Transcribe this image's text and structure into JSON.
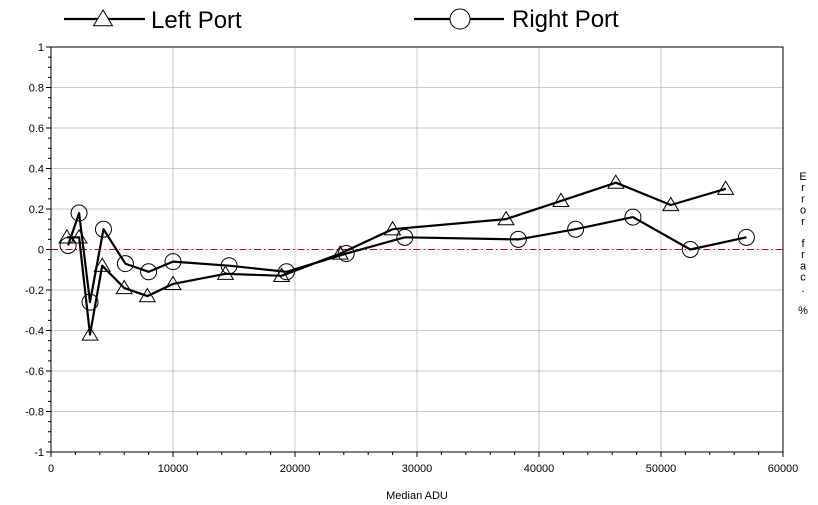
{
  "chart_data": {
    "type": "line",
    "xlabel": "Median ADU",
    "ylabel": "Error frac. %",
    "xlim": [
      0,
      60000
    ],
    "ylim": [
      -1,
      1
    ],
    "x_ticks": [
      "0",
      "10000",
      "20000",
      "30000",
      "40000",
      "50000",
      "60000"
    ],
    "y_ticks": [
      "-1",
      "-0.8",
      "-0.6",
      "-0.4",
      "-0.2",
      "0",
      "0.2",
      "0.4",
      "0.6",
      "0.8",
      "1"
    ],
    "grid": true,
    "legend_position": "top",
    "reference_line": {
      "y": 0,
      "color": "#cc0000",
      "style": "dash-dot"
    },
    "series": [
      {
        "name": "Left Port",
        "marker": "triangle",
        "color": "#000000",
        "points": [
          [
            1300,
            0.06
          ],
          [
            2300,
            0.06
          ],
          [
            3200,
            -0.42
          ],
          [
            4200,
            -0.08
          ],
          [
            6000,
            -0.19
          ],
          [
            7900,
            -0.23
          ],
          [
            10000,
            -0.17
          ],
          [
            14300,
            -0.12
          ],
          [
            18900,
            -0.13
          ],
          [
            23700,
            -0.02
          ],
          [
            28000,
            0.1
          ],
          [
            37300,
            0.15
          ],
          [
            41800,
            0.24
          ],
          [
            46300,
            0.33
          ],
          [
            50800,
            0.22
          ],
          [
            55300,
            0.3
          ]
        ]
      },
      {
        "name": "Right Port",
        "marker": "circle",
        "color": "#000000",
        "points": [
          [
            1400,
            0.02
          ],
          [
            2300,
            0.18
          ],
          [
            3200,
            -0.26
          ],
          [
            4300,
            0.1
          ],
          [
            6100,
            -0.07
          ],
          [
            8000,
            -0.11
          ],
          [
            10000,
            -0.06
          ],
          [
            14600,
            -0.08
          ],
          [
            19300,
            -0.11
          ],
          [
            24200,
            -0.02
          ],
          [
            29000,
            0.06
          ],
          [
            38300,
            0.05
          ],
          [
            43000,
            0.1
          ],
          [
            47700,
            0.16
          ],
          [
            52400,
            0.0
          ],
          [
            57000,
            0.06
          ]
        ]
      }
    ]
  }
}
